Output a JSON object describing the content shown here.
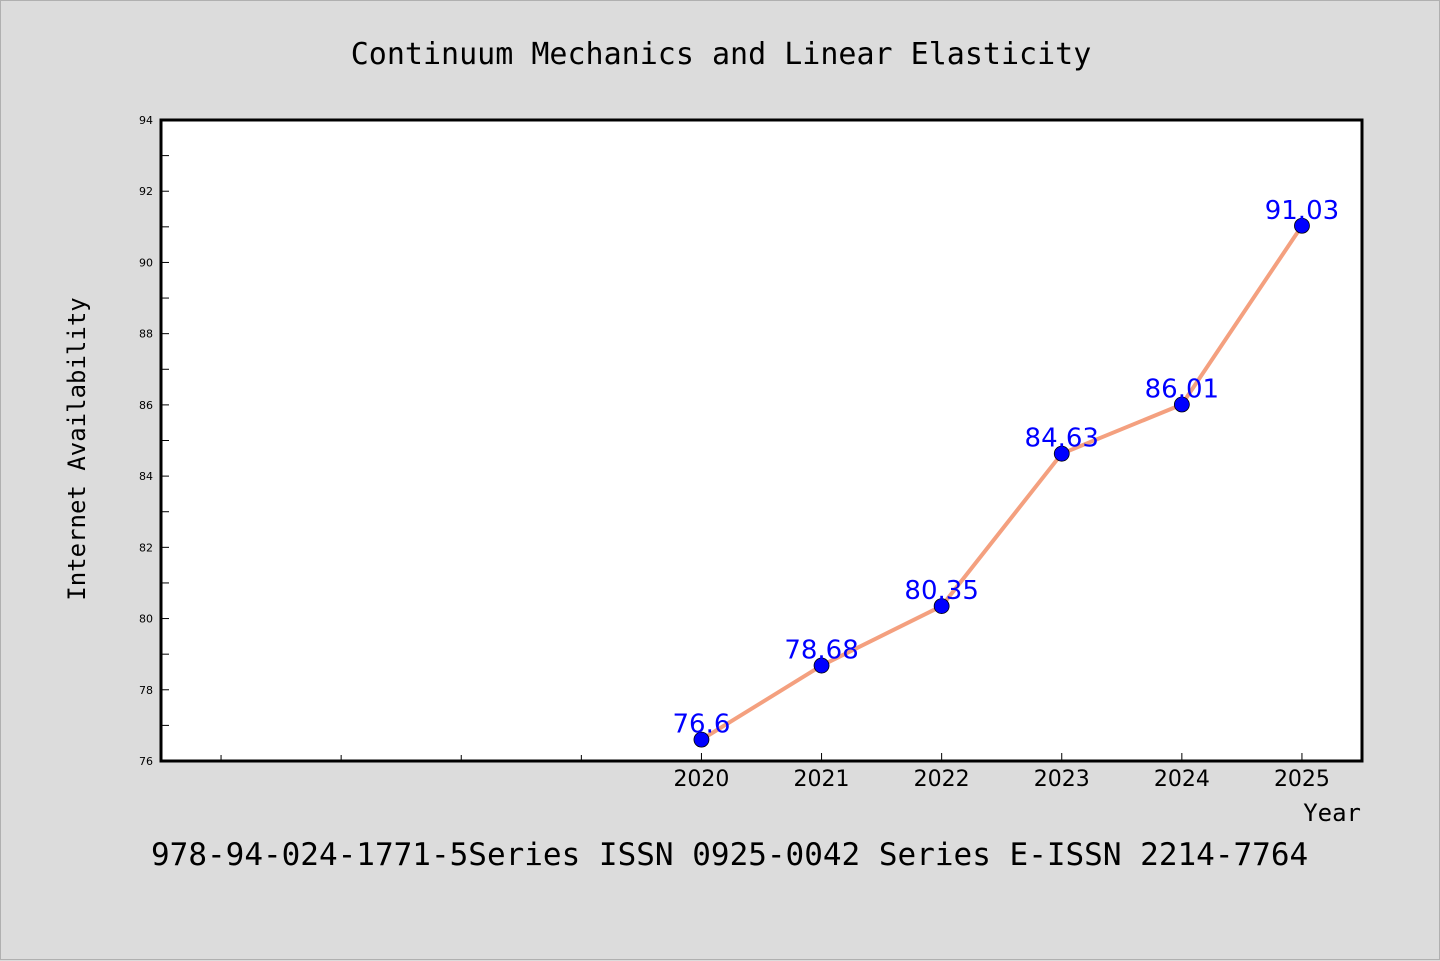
{
  "chart_data": {
    "type": "line",
    "title": "Continuum Mechanics and Linear Elasticity",
    "xlabel": "Year",
    "ylabel": "Internet Availability",
    "x": [
      2020,
      2021,
      2022,
      2023,
      2024,
      2025
    ],
    "x_tick_labels": [
      "2020",
      "2021",
      "2022",
      "2023",
      "2024",
      "2025"
    ],
    "xlim": [
      2015.5,
      2025.5
    ],
    "ylim": [
      76,
      94
    ],
    "y_ticks": [
      76,
      78,
      80,
      82,
      84,
      86,
      88,
      90,
      92,
      94
    ],
    "series": [
      {
        "values": [
          76.6,
          78.68,
          80.35,
          84.63,
          86.01,
          91.03
        ],
        "data_labels": [
          "76.6",
          "78.68",
          "80.35",
          "84.63",
          "86.01",
          "91.03"
        ],
        "line_color": "#f4a07f",
        "marker_color": "#0000ff",
        "label_color": "#0000ff"
      }
    ],
    "grid": false,
    "legend": "none"
  },
  "footer": {
    "text": "978-94-024-1771-5Series ISSN 0925-0042 Series E-ISSN 2214-7764"
  },
  "colors": {
    "background": "#dcdcdc",
    "plot_background": "#ffffff"
  }
}
